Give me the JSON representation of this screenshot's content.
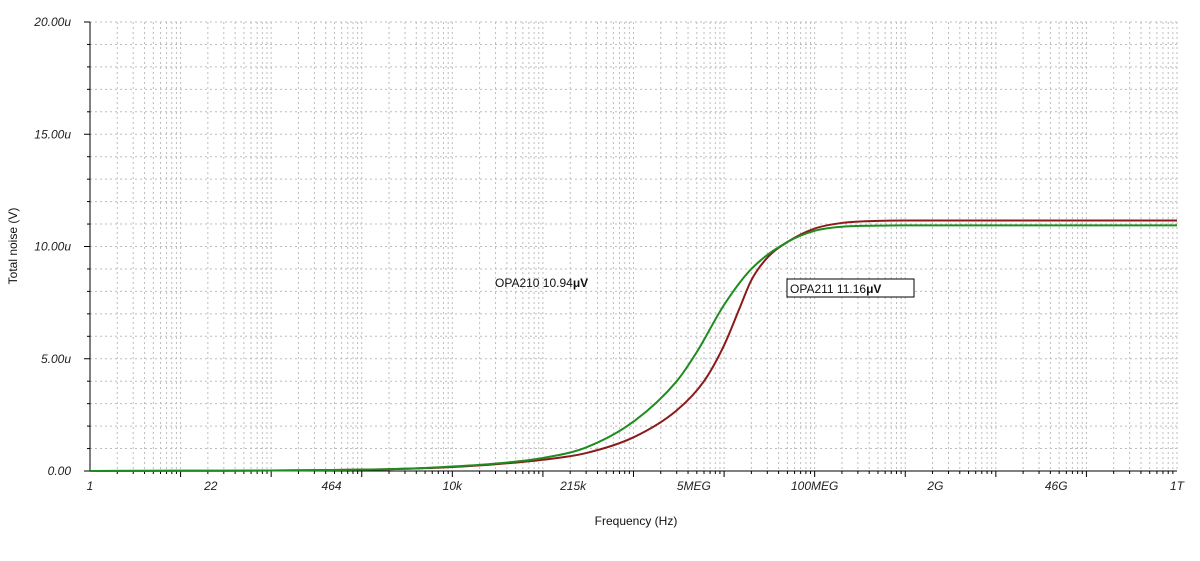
{
  "chart_data": {
    "type": "line",
    "xlabel": "Frequency (Hz)",
    "ylabel": "Total noise (V)",
    "x_scale": "log",
    "xlim": [
      1,
      1000000000000
    ],
    "ylim": [
      0,
      20
    ],
    "y_unit": "uV",
    "grid": true,
    "x_ticks": [
      {
        "value": 1,
        "label": "1"
      },
      {
        "value": 21.544,
        "label": "22"
      },
      {
        "value": 464.16,
        "label": "464"
      },
      {
        "value": 10000,
        "label": "10k"
      },
      {
        "value": 215443,
        "label": "215k"
      },
      {
        "value": 4641589,
        "label": "5MEG"
      },
      {
        "value": 100000000,
        "label": "100MEG"
      },
      {
        "value": 2154434690,
        "label": "2G"
      },
      {
        "value": 46415888336,
        "label": "46G"
      },
      {
        "value": 1000000000000,
        "label": "1T"
      }
    ],
    "y_ticks": [
      {
        "value": 0,
        "label": "0.00"
      },
      {
        "value": 5,
        "label": "5.00u"
      },
      {
        "value": 10,
        "label": "10.00u"
      },
      {
        "value": 15,
        "label": "15.00u"
      },
      {
        "value": 20,
        "label": "20.00u"
      }
    ],
    "series": [
      {
        "name": "OPA211",
        "color": "#8b1a1a",
        "points": [
          [
            1,
            0
          ],
          [
            10,
            0.01
          ],
          [
            100,
            0.02
          ],
          [
            1000,
            0.06
          ],
          [
            3000,
            0.1
          ],
          [
            10000,
            0.18
          ],
          [
            30000,
            0.3
          ],
          [
            100000,
            0.5
          ],
          [
            300000,
            0.8
          ],
          [
            1000000,
            1.5
          ],
          [
            3000000,
            2.7
          ],
          [
            6000000,
            4.0
          ],
          [
            10000000,
            5.6
          ],
          [
            15000000,
            7.3
          ],
          [
            20000000,
            8.5
          ],
          [
            30000000,
            9.5
          ],
          [
            50000000,
            10.2
          ],
          [
            100000000,
            10.8
          ],
          [
            200000000,
            11.05
          ],
          [
            500000000,
            11.14
          ],
          [
            1000000000,
            11.16
          ],
          [
            1000000000000,
            11.16
          ]
        ]
      },
      {
        "name": "OPA210",
        "color": "#1e8c1e",
        "points": [
          [
            1,
            0
          ],
          [
            10,
            0.01
          ],
          [
            100,
            0.02
          ],
          [
            1000,
            0.06
          ],
          [
            3000,
            0.1
          ],
          [
            10000,
            0.2
          ],
          [
            30000,
            0.33
          ],
          [
            100000,
            0.58
          ],
          [
            300000,
            1.05
          ],
          [
            1000000,
            2.2
          ],
          [
            3000000,
            4.0
          ],
          [
            5000000,
            5.3
          ],
          [
            10000000,
            7.4
          ],
          [
            20000000,
            9.0
          ],
          [
            50000000,
            10.2
          ],
          [
            100000000,
            10.7
          ],
          [
            200000000,
            10.88
          ],
          [
            500000000,
            10.93
          ],
          [
            1000000000,
            10.94
          ],
          [
            1000000000000,
            10.94
          ]
        ]
      }
    ],
    "annotations": [
      {
        "series": "OPA210",
        "text_prefix": "OPA210 10.94",
        "text_unit": "μV",
        "boxed": false
      },
      {
        "series": "OPA211",
        "text_prefix": "OPA211 11.16",
        "text_unit": "μV",
        "boxed": true
      }
    ]
  }
}
